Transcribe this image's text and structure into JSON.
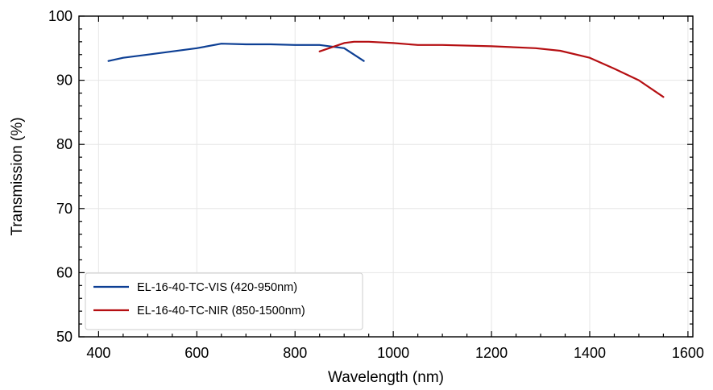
{
  "chart_data": {
    "type": "line",
    "title": "",
    "xlabel": "Wavelength (nm)",
    "ylabel": "Transmission (%)",
    "xlim": [
      360,
      1610
    ],
    "ylim": [
      50,
      100
    ],
    "xticks": [
      400,
      600,
      800,
      1000,
      1200,
      1400,
      1600
    ],
    "yticks": [
      50,
      60,
      70,
      80,
      90,
      100
    ],
    "x_minor_step": 50,
    "y_minor_step": 2,
    "grid": true,
    "legend_position": "lower-left",
    "series": [
      {
        "name": "EL-16-40-TC-VIS (420-950nm)",
        "color": "#0d3f94",
        "x": [
          420,
          450,
          500,
          600,
          650,
          700,
          750,
          800,
          850,
          900,
          940
        ],
        "y": [
          93.0,
          93.5,
          94.0,
          95.0,
          95.7,
          95.6,
          95.6,
          95.5,
          95.5,
          95.0,
          93.0
        ]
      },
      {
        "name": "EL-16-40-TC-NIR (850-1500nm)",
        "color": "#b50f12",
        "x": [
          850,
          900,
          920,
          950,
          1000,
          1050,
          1100,
          1200,
          1290,
          1340,
          1400,
          1450,
          1500,
          1550
        ],
        "y": [
          94.5,
          95.8,
          96.0,
          96.0,
          95.8,
          95.5,
          95.5,
          95.3,
          95.0,
          94.6,
          93.5,
          91.8,
          90.0,
          87.4
        ]
      }
    ]
  }
}
